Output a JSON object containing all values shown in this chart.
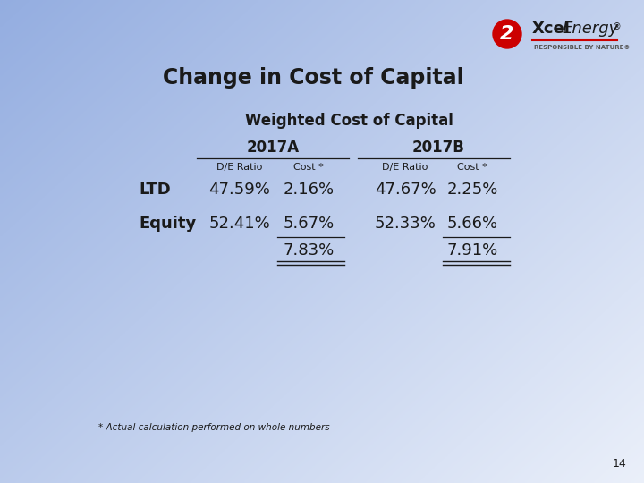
{
  "title": "Change in Cost of Capital",
  "subtitle": "Weighted Cost of Capital",
  "col_2017A": "2017A",
  "col_2017B": "2017B",
  "col_de_ratio": "D/E Ratio",
  "col_cost": "Cost *",
  "row_labels": [
    "LTD",
    "Equity"
  ],
  "data_2017A_de": [
    "47.59%",
    "52.41%"
  ],
  "data_2017A_cost": [
    "2.16%",
    "5.67%"
  ],
  "data_2017B_de": [
    "47.67%",
    "52.33%"
  ],
  "data_2017B_cost": [
    "2.25%",
    "5.66%"
  ],
  "total_2017A": "7.83%",
  "total_2017B": "7.91%",
  "footnote": "* Actual calculation performed on whole numbers",
  "page_number": "14",
  "title_fontsize": 17,
  "subtitle_fontsize": 12,
  "header_fontsize": 12,
  "subheader_fontsize": 8,
  "data_fontsize": 13,
  "footnote_fontsize": 7.5
}
